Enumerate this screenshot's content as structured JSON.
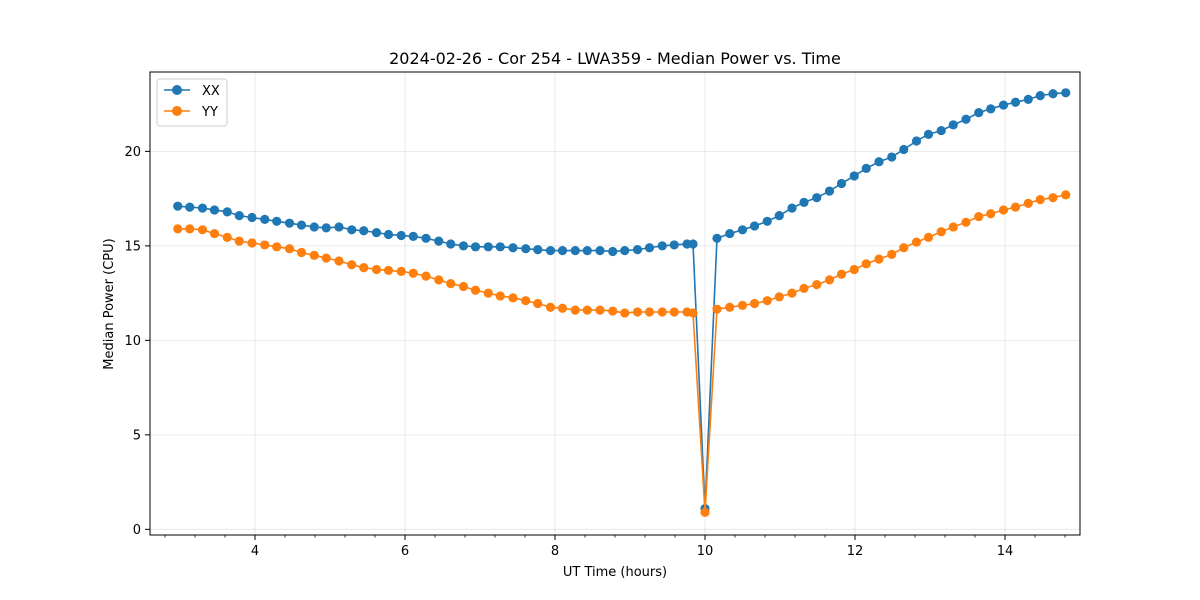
{
  "chart_data": {
    "type": "line",
    "title": "2024-02-26 - Cor 254 - LWA359 - Median Power vs. Time",
    "xlabel": "UT Time (hours)",
    "ylabel": "Median Power (CPU)",
    "xlim": [
      2.6,
      15.0
    ],
    "ylim": [
      -0.3,
      24.2
    ],
    "xticks": [
      4,
      6,
      8,
      10,
      12,
      14
    ],
    "yticks": [
      0,
      5,
      10,
      15,
      20
    ],
    "x_minor_step": 0.4,
    "grid": true,
    "legend_position": "top-left",
    "x": [
      2.97,
      3.13,
      3.3,
      3.46,
      3.63,
      3.79,
      3.96,
      4.13,
      4.29,
      4.46,
      4.62,
      4.79,
      4.95,
      5.12,
      5.29,
      5.45,
      5.62,
      5.78,
      5.95,
      6.11,
      6.28,
      6.45,
      6.61,
      6.78,
      6.94,
      7.11,
      7.27,
      7.44,
      7.61,
      7.77,
      7.94,
      8.1,
      8.27,
      8.43,
      8.6,
      8.77,
      8.93,
      9.1,
      9.26,
      9.43,
      9.59,
      9.76,
      9.84,
      10.0,
      10.16,
      10.33,
      10.5,
      10.66,
      10.83,
      10.99,
      11.16,
      11.32,
      11.49,
      11.66,
      11.82,
      11.99,
      12.15,
      12.32,
      12.49,
      12.65,
      12.82,
      12.98,
      13.15,
      13.31,
      13.48,
      13.65,
      13.81,
      13.98,
      14.14,
      14.31,
      14.47,
      14.64,
      14.81
    ],
    "series": [
      {
        "name": "XX",
        "color": "#1f77b4",
        "values": [
          17.1,
          17.05,
          17.0,
          16.9,
          16.8,
          16.6,
          16.5,
          16.4,
          16.3,
          16.2,
          16.1,
          16.0,
          15.95,
          16.0,
          15.85,
          15.8,
          15.7,
          15.6,
          15.55,
          15.5,
          15.4,
          15.25,
          15.1,
          15.0,
          14.95,
          14.95,
          14.95,
          14.9,
          14.85,
          14.8,
          14.75,
          14.75,
          14.75,
          14.75,
          14.75,
          14.7,
          14.75,
          14.8,
          14.9,
          15.0,
          15.05,
          15.1,
          15.1,
          1.1,
          15.4,
          15.65,
          15.85,
          16.05,
          16.3,
          16.6,
          17.0,
          17.3,
          17.55,
          17.9,
          18.3,
          18.7,
          19.1,
          19.45,
          19.7,
          20.1,
          20.55,
          20.9,
          21.1,
          21.4,
          21.7,
          22.05,
          22.25,
          22.45,
          22.6,
          22.75,
          22.95,
          23.05,
          23.1
        ]
      },
      {
        "name": "YY",
        "color": "#ff7f0e",
        "values": [
          15.9,
          15.9,
          15.85,
          15.65,
          15.45,
          15.25,
          15.15,
          15.05,
          14.95,
          14.85,
          14.65,
          14.5,
          14.35,
          14.2,
          14.0,
          13.85,
          13.75,
          13.7,
          13.65,
          13.55,
          13.4,
          13.2,
          13.0,
          12.85,
          12.65,
          12.5,
          12.35,
          12.25,
          12.1,
          11.95,
          11.75,
          11.7,
          11.6,
          11.6,
          11.6,
          11.55,
          11.45,
          11.5,
          11.5,
          11.5,
          11.5,
          11.5,
          11.45,
          0.9,
          11.65,
          11.75,
          11.85,
          11.95,
          12.1,
          12.3,
          12.5,
          12.75,
          12.95,
          13.2,
          13.5,
          13.75,
          14.05,
          14.3,
          14.55,
          14.9,
          15.2,
          15.45,
          15.75,
          16.0,
          16.25,
          16.55,
          16.7,
          16.9,
          17.05,
          17.25,
          17.45,
          17.55,
          17.7
        ]
      }
    ]
  }
}
